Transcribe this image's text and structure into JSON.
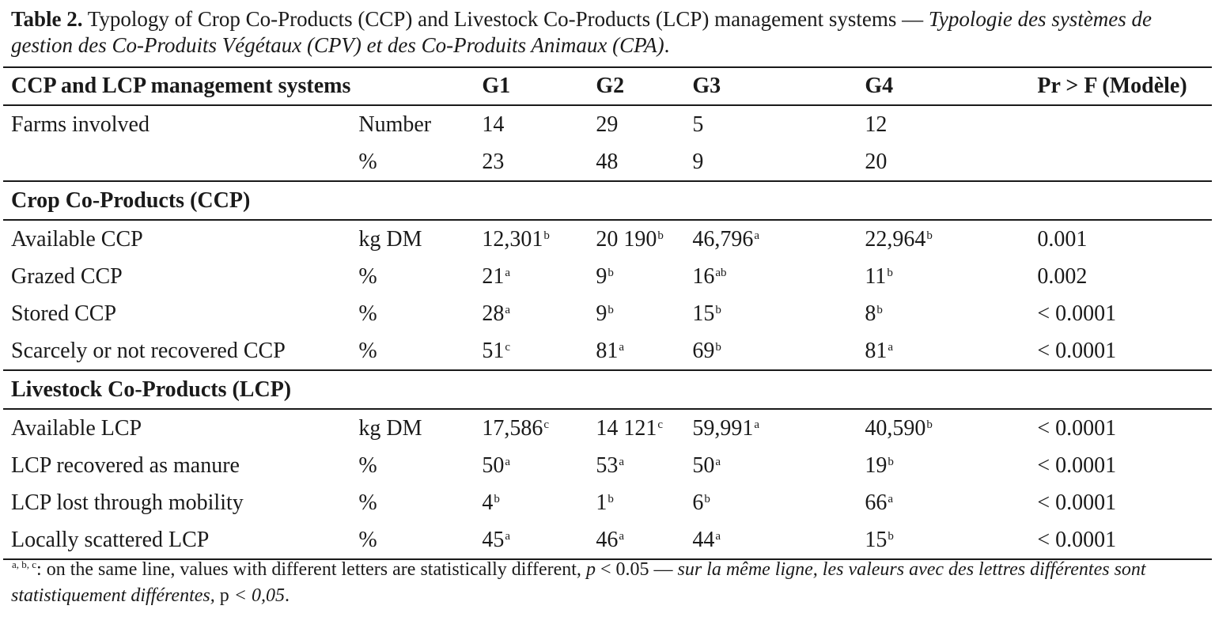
{
  "caption": {
    "label": "Table 2.",
    "title_en": " Typology of Crop Co-Products (CCP) and Livestock Co-Products (LCP) management systems — ",
    "title_fr": "Typologie des systèmes de gestion des Co-Produits Végétaux (CPV) et des Co-Produits Animaux (CPA)",
    "end": "."
  },
  "header": {
    "label": "CCP and LCP management systems",
    "unit": "",
    "g1": "G1",
    "g2": "G2",
    "g3": "G3",
    "g4": "G4",
    "pr": "Pr > F (Modèle)"
  },
  "farms": [
    {
      "label": "Farms involved",
      "unit": "Number",
      "g1": "14",
      "g2": "29",
      "g3": "5",
      "g4": "12",
      "pr": ""
    },
    {
      "label": "",
      "unit": "%",
      "g1": "23",
      "g2": "48",
      "g3": "9",
      "g4": "20",
      "pr": ""
    }
  ],
  "ccp_section": "Crop Co-Products (CCP)",
  "ccp_rows": [
    {
      "label": "Available CCP",
      "unit": "kg DM",
      "g1": "12,301",
      "g1s": "b",
      "g2": "20 190",
      "g2s": "b",
      "g3": "46,796",
      "g3s": "a",
      "g4": "22,964",
      "g4s": "b",
      "pr": "0.001"
    },
    {
      "label": "Grazed CCP",
      "unit": "%",
      "g1": "21",
      "g1s": "a",
      "g2": "9",
      "g2s": "b",
      "g3": "16",
      "g3s": "ab",
      "g4": "11",
      "g4s": "b",
      "pr": "0.002"
    },
    {
      "label": "Stored CCP",
      "unit": "%",
      "g1": "28",
      "g1s": "a",
      "g2": "9",
      "g2s": "b",
      "g3": "15",
      "g3s": "b",
      "g4": "8",
      "g4s": "b",
      "pr": "< 0.0001"
    },
    {
      "label": "Scarcely or not recovered CCP",
      "unit": "%",
      "g1": "51",
      "g1s": "c",
      "g2": "81",
      "g2s": "a",
      "g3": "69",
      "g3s": "b",
      "g4": "81",
      "g4s": "a",
      "pr": "< 0.0001"
    }
  ],
  "lcp_section": "Livestock Co-Products (LCP)",
  "lcp_rows": [
    {
      "label": "Available LCP",
      "unit": "kg DM",
      "g1": "17,586",
      "g1s": "c",
      "g2": "14 121",
      "g2s": "c",
      "g3": "59,991",
      "g3s": "a",
      "g4": "40,590",
      "g4s": "b",
      "pr": "< 0.0001"
    },
    {
      "label": "LCP recovered as manure",
      "unit": "%",
      "g1": "50",
      "g1s": "a",
      "g2": "53",
      "g2s": "a",
      "g3": "50",
      "g3s": "a",
      "g4": "19",
      "g4s": "b",
      "pr": "< 0.0001"
    },
    {
      "label": "LCP lost through mobility",
      "unit": "%",
      "g1": "4",
      "g1s": "b",
      "g2": "1",
      "g2s": "b",
      "g3": "6",
      "g3s": "b",
      "g4": "66",
      "g4s": "a",
      "pr": "< 0.0001"
    },
    {
      "label": "Locally scattered LCP",
      "unit": "%",
      "g1": "45",
      "g1s": "a",
      "g2": "46",
      "g2s": "a",
      "g3": "44",
      "g3s": "a",
      "g4": "15",
      "g4s": "b",
      "pr": "< 0.0001"
    }
  ],
  "footnote": {
    "marks": "a, b, c",
    "text_en": ": on the same line, values with different letters are statistically different, ",
    "p_en": "p",
    "thr_en": " < 0.05 — ",
    "text_fr": "sur la même ligne, les valeurs avec des lettres différentes sont statistiquement différentes, ",
    "p_fr": "p",
    "thr_fr": " < 0,05",
    "end": "."
  }
}
